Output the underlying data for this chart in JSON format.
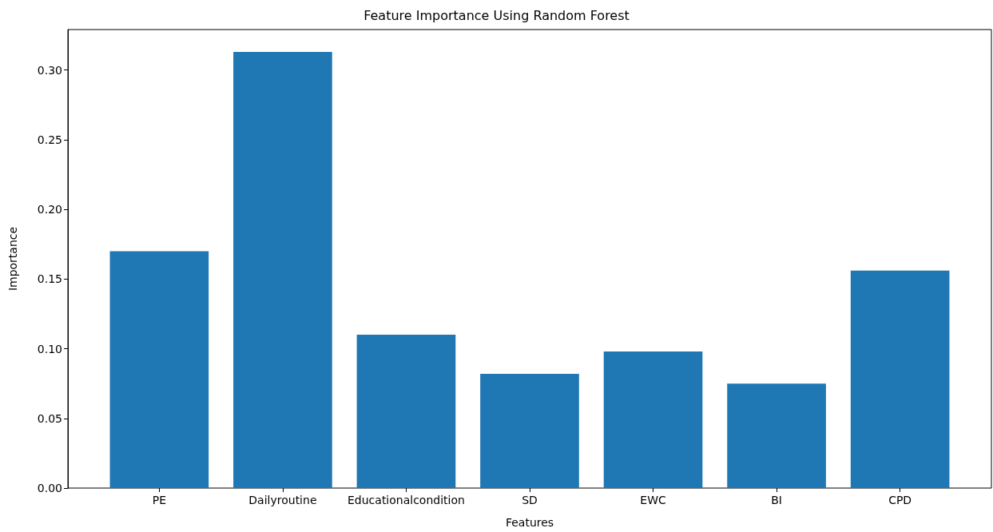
{
  "chart_data": {
    "type": "bar",
    "title": "Feature Importance Using Random Forest",
    "xlabel": "Features",
    "ylabel": "Importance",
    "categories": [
      "PE",
      "Dailyroutine",
      "Educationalcondition",
      "SD",
      "EWC",
      "BI",
      "CPD"
    ],
    "values": [
      0.17,
      0.313,
      0.11,
      0.082,
      0.098,
      0.075,
      0.156
    ],
    "color": "#1f77b4",
    "ylim": [
      0,
      0.329
    ],
    "yticks": [
      {
        "value": 0,
        "label": "0.00"
      },
      {
        "value": 0.05,
        "label": "0.05"
      },
      {
        "value": 0.1,
        "label": "0.10"
      },
      {
        "value": 0.15,
        "label": "0.15"
      },
      {
        "value": 0.2,
        "label": "0.20"
      },
      {
        "value": 0.25,
        "label": "0.25"
      },
      {
        "value": 0.3,
        "label": "0.30"
      }
    ]
  }
}
